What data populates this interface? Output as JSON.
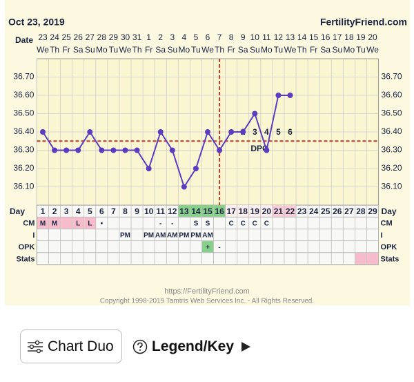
{
  "header": {
    "date": "Oct 23, 2019",
    "site": "FertilityFriend.com"
  },
  "chart_data": {
    "type": "line",
    "date_label": "Date",
    "day_label": "Day",
    "dates": [
      23,
      24,
      25,
      26,
      27,
      28,
      29,
      30,
      31,
      1,
      2,
      3,
      4,
      5,
      6,
      7,
      8,
      9,
      10,
      11,
      12,
      13,
      14,
      15,
      16,
      17,
      18,
      19,
      20
    ],
    "weekdays": [
      "We",
      "Th",
      "Fr",
      "Sa",
      "Su",
      "Mo",
      "Tu",
      "We",
      "Th",
      "Fr",
      "Sa",
      "Su",
      "Mo",
      "Tu",
      "We",
      "Th",
      "Fr",
      "Sa",
      "Su",
      "Mo",
      "Tu",
      "We",
      "Th",
      "Fr",
      "Sa",
      "Su",
      "Mo",
      "Tu",
      "We"
    ],
    "categories": [
      1,
      2,
      3,
      4,
      5,
      6,
      7,
      8,
      9,
      10,
      11,
      12,
      13,
      14,
      15,
      16,
      17,
      18,
      19,
      20,
      21,
      22,
      23,
      24,
      25,
      26,
      27,
      28,
      29
    ],
    "values": [
      36.4,
      36.3,
      36.3,
      36.3,
      36.4,
      36.3,
      36.3,
      36.3,
      36.3,
      36.2,
      36.4,
      36.3,
      36.1,
      36.2,
      36.4,
      36.3,
      36.4,
      36.4,
      36.5,
      36.3,
      36.6,
      36.6,
      null,
      null,
      null,
      null,
      null,
      null,
      null
    ],
    "color": "#5b3cc0",
    "ylim": [
      36.0,
      36.8
    ],
    "yticks": [
      {
        "value": 36.1,
        "label": "36.10"
      },
      {
        "value": 36.2,
        "label": "36.20"
      },
      {
        "value": 36.3,
        "label": "36.30"
      },
      {
        "value": 36.4,
        "label": "36.40"
      },
      {
        "value": 36.5,
        "label": "36.50"
      },
      {
        "value": 36.6,
        "label": "36.60"
      },
      {
        "value": 36.7,
        "label": "36.70"
      }
    ],
    "coverline": 36.35,
    "ovulation_day": 16,
    "reference_color": "#c0392b",
    "dpo_label": "DPO",
    "dpo_days": [
      18,
      19,
      20,
      21,
      22
    ],
    "dpo_numbers": [
      2,
      3,
      4,
      5,
      6
    ],
    "day_fills": [
      null,
      null,
      null,
      null,
      null,
      null,
      null,
      null,
      null,
      null,
      null,
      null,
      "#86d08a",
      "#86d08a",
      "#86d08a",
      "#86d08a",
      "#fdeeee",
      "#fdeeee",
      "#fdeeee",
      "#fdeeee",
      "#f8cdd6",
      "#f8cdd6",
      null,
      null,
      null,
      null,
      null,
      null,
      null
    ],
    "rows": [
      {
        "label": "CM",
        "cells": [
          "M",
          "M",
          null,
          "L",
          "L",
          "•",
          null,
          null,
          null,
          null,
          "-",
          "-",
          null,
          "S",
          "S",
          null,
          "C",
          "C",
          "C",
          "C",
          null,
          null,
          null,
          null,
          null,
          null,
          null,
          null,
          null
        ],
        "fills": [
          "#f6bccb",
          "#f6bccb",
          "#f6bccb",
          "#f6bccb",
          "#f6bccb",
          null,
          null,
          null,
          null,
          null,
          null,
          null,
          null,
          null,
          null,
          null,
          null,
          null,
          null,
          null,
          null,
          null,
          null,
          null,
          null,
          null,
          null,
          null,
          null
        ]
      },
      {
        "label": "I",
        "cells": [
          null,
          null,
          null,
          null,
          null,
          null,
          null,
          "PM",
          null,
          "PM",
          "AM",
          "AM",
          "PM",
          "PM",
          "AM",
          null,
          null,
          null,
          null,
          null,
          null,
          null,
          null,
          null,
          null,
          null,
          null,
          null,
          null
        ],
        "fills": [
          null,
          null,
          null,
          null,
          null,
          null,
          null,
          null,
          null,
          null,
          null,
          null,
          null,
          null,
          null,
          null,
          null,
          null,
          null,
          null,
          null,
          null,
          null,
          null,
          null,
          null,
          null,
          null,
          null
        ]
      },
      {
        "label": "OPK",
        "cells": [
          null,
          null,
          null,
          null,
          null,
          null,
          null,
          null,
          null,
          null,
          null,
          null,
          null,
          null,
          "+",
          "-",
          null,
          null,
          null,
          null,
          null,
          null,
          null,
          null,
          null,
          null,
          null,
          null,
          null
        ],
        "fills": [
          null,
          null,
          null,
          null,
          null,
          null,
          null,
          null,
          null,
          null,
          null,
          null,
          null,
          null,
          "#86d08a",
          null,
          null,
          null,
          null,
          null,
          null,
          null,
          null,
          null,
          null,
          null,
          null,
          null,
          null
        ]
      },
      {
        "label": "Stats",
        "cells": [
          null,
          null,
          null,
          null,
          null,
          null,
          null,
          null,
          null,
          null,
          null,
          null,
          null,
          null,
          null,
          null,
          null,
          null,
          null,
          null,
          null,
          null,
          null,
          null,
          null,
          null,
          null,
          null,
          null
        ],
        "fills": [
          null,
          null,
          null,
          null,
          null,
          null,
          null,
          null,
          null,
          null,
          null,
          null,
          null,
          null,
          null,
          null,
          null,
          null,
          null,
          null,
          null,
          null,
          null,
          null,
          null,
          null,
          null,
          "#f6bccb",
          "#f6bccb"
        ]
      }
    ]
  },
  "footer": {
    "url": "https://FertilityFriend.com",
    "copyright": "Copyright 1998-2019 Tamtris Web Services Inc. - All Rights Reserved."
  },
  "buttons": {
    "chart_duo": "Chart Duo",
    "legend": "Legend/Key"
  }
}
